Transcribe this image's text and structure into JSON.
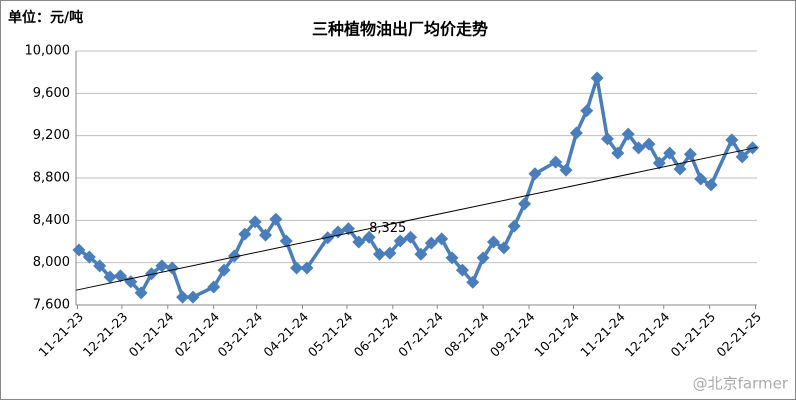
{
  "chart_data": {
    "type": "line",
    "title": "三种植物油出厂均价走势",
    "unit_label": "单位：元/吨",
    "watermark": "@北京farmer",
    "x": [
      "2023-11-22",
      "2023-11-29",
      "2023-12-06",
      "2023-12-13",
      "2023-12-20",
      "2023-12-27",
      "2024-01-03",
      "2024-01-10",
      "2024-01-17",
      "2024-01-24",
      "2024-01-31",
      "2024-02-07",
      "2024-02-21",
      "2024-02-28",
      "2024-03-06",
      "2024-03-13",
      "2024-03-20",
      "2024-03-27",
      "2024-04-03",
      "2024-04-10",
      "2024-04-17",
      "2024-04-24",
      "2024-05-08",
      "2024-05-15",
      "2024-05-22",
      "2024-05-29",
      "2024-06-05",
      "2024-06-12",
      "2024-06-19",
      "2024-06-26",
      "2024-07-03",
      "2024-07-10",
      "2024-07-17",
      "2024-07-24",
      "2024-07-31",
      "2024-08-07",
      "2024-08-14",
      "2024-08-21",
      "2024-08-28",
      "2024-09-04",
      "2024-09-11",
      "2024-09-18",
      "2024-09-25",
      "2024-10-09",
      "2024-10-16",
      "2024-10-23",
      "2024-10-30",
      "2024-11-06",
      "2024-11-13",
      "2024-11-20",
      "2024-11-27",
      "2024-12-04",
      "2024-12-11",
      "2024-12-18",
      "2024-12-25",
      "2025-01-01",
      "2025-01-08",
      "2025-01-15",
      "2025-01-22",
      "2025-02-05",
      "2025-02-12",
      "2025-02-19"
    ],
    "series": [
      {
        "color": "#4a7ebb",
        "values": [
          8120,
          8053,
          7970,
          7865,
          7875,
          7820,
          7715,
          7895,
          7970,
          7950,
          7675,
          7675,
          7770,
          7930,
          8063,
          8270,
          8385,
          8260,
          8410,
          8205,
          7950,
          7950,
          8235,
          8290,
          8320,
          8195,
          8240,
          8080,
          8090,
          8205,
          8240,
          8080,
          8185,
          8225,
          8045,
          7930,
          7815,
          8045,
          8195,
          8140,
          8345,
          8555,
          8840,
          8950,
          8875,
          9225,
          9435,
          9745,
          9170,
          9035,
          9215,
          9085,
          9120,
          8940,
          9035,
          8885,
          9025,
          8790,
          8735,
          9160,
          9000,
          9085
        ]
      }
    ],
    "trendline": {
      "color": "#000000",
      "values": [
        7740,
        9090
      ],
      "annotation": {
        "value": 8325,
        "label": "8,325"
      }
    },
    "xlim": [
      "2023-11-20",
      "2025-02-22"
    ],
    "xticks": [
      {
        "value": "2023-11-21",
        "label": "11-21-23"
      },
      {
        "value": "2023-12-21",
        "label": "12-21-23"
      },
      {
        "value": "2024-01-21",
        "label": "01-21-24"
      },
      {
        "value": "2024-02-21",
        "label": "02-21-24"
      },
      {
        "value": "2024-03-21",
        "label": "03-21-24"
      },
      {
        "value": "2024-04-21",
        "label": "04-21-24"
      },
      {
        "value": "2024-05-21",
        "label": "05-21-24"
      },
      {
        "value": "2024-06-21",
        "label": "06-21-24"
      },
      {
        "value": "2024-07-21",
        "label": "07-21-24"
      },
      {
        "value": "2024-08-21",
        "label": "08-21-24"
      },
      {
        "value": "2024-09-21",
        "label": "09-21-24"
      },
      {
        "value": "2024-10-21",
        "label": "10-21-24"
      },
      {
        "value": "2024-11-21",
        "label": "11-21-24"
      },
      {
        "value": "2024-12-21",
        "label": "12-21-24"
      },
      {
        "value": "2025-01-21",
        "label": "01-21-25"
      },
      {
        "value": "2025-02-21",
        "label": "02-21-25"
      }
    ],
    "ylim": [
      7600,
      10000
    ],
    "yticks": [
      {
        "value": 7600,
        "label": "7,600"
      },
      {
        "value": 8000,
        "label": "8,000"
      },
      {
        "value": 8400,
        "label": "8,400"
      },
      {
        "value": 8800,
        "label": "8,800"
      },
      {
        "value": 9200,
        "label": "9,200"
      },
      {
        "value": 9600,
        "label": "9,600"
      },
      {
        "value": 10000,
        "label": "10,000"
      }
    ],
    "grid": true
  }
}
